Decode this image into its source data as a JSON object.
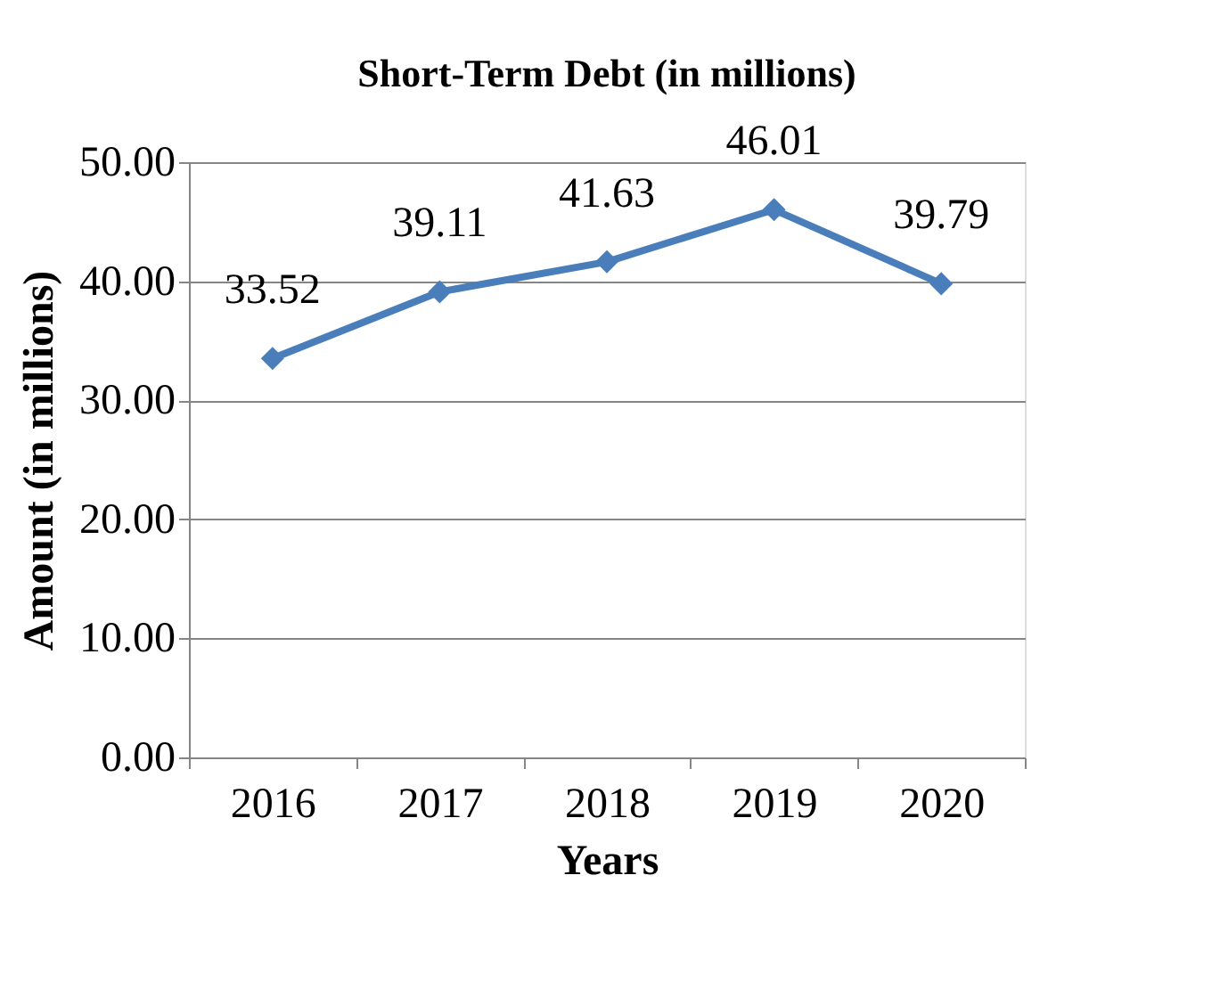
{
  "chart_data": {
    "type": "line",
    "title": "Short-Term Debt (in millions)",
    "xlabel": "Years",
    "ylabel": "Amount (in millions)",
    "categories": [
      "2016",
      "2017",
      "2018",
      "2019",
      "2020"
    ],
    "series": [
      {
        "color": "#4a7ebb",
        "values": [
          33.52,
          39.11,
          41.63,
          46.01,
          39.79
        ]
      }
    ],
    "ylim": [
      0,
      50
    ],
    "yticks": [
      {
        "value": 0,
        "label": "0.00"
      },
      {
        "value": 10,
        "label": "10.00"
      },
      {
        "value": 20,
        "label": "20.00"
      },
      {
        "value": 30,
        "label": "30.00"
      },
      {
        "value": 40,
        "label": "40.00"
      },
      {
        "value": 50,
        "label": "50.00"
      }
    ],
    "grid": "y",
    "marker": "diamond",
    "line_style": "solid",
    "data_labels": true
  }
}
